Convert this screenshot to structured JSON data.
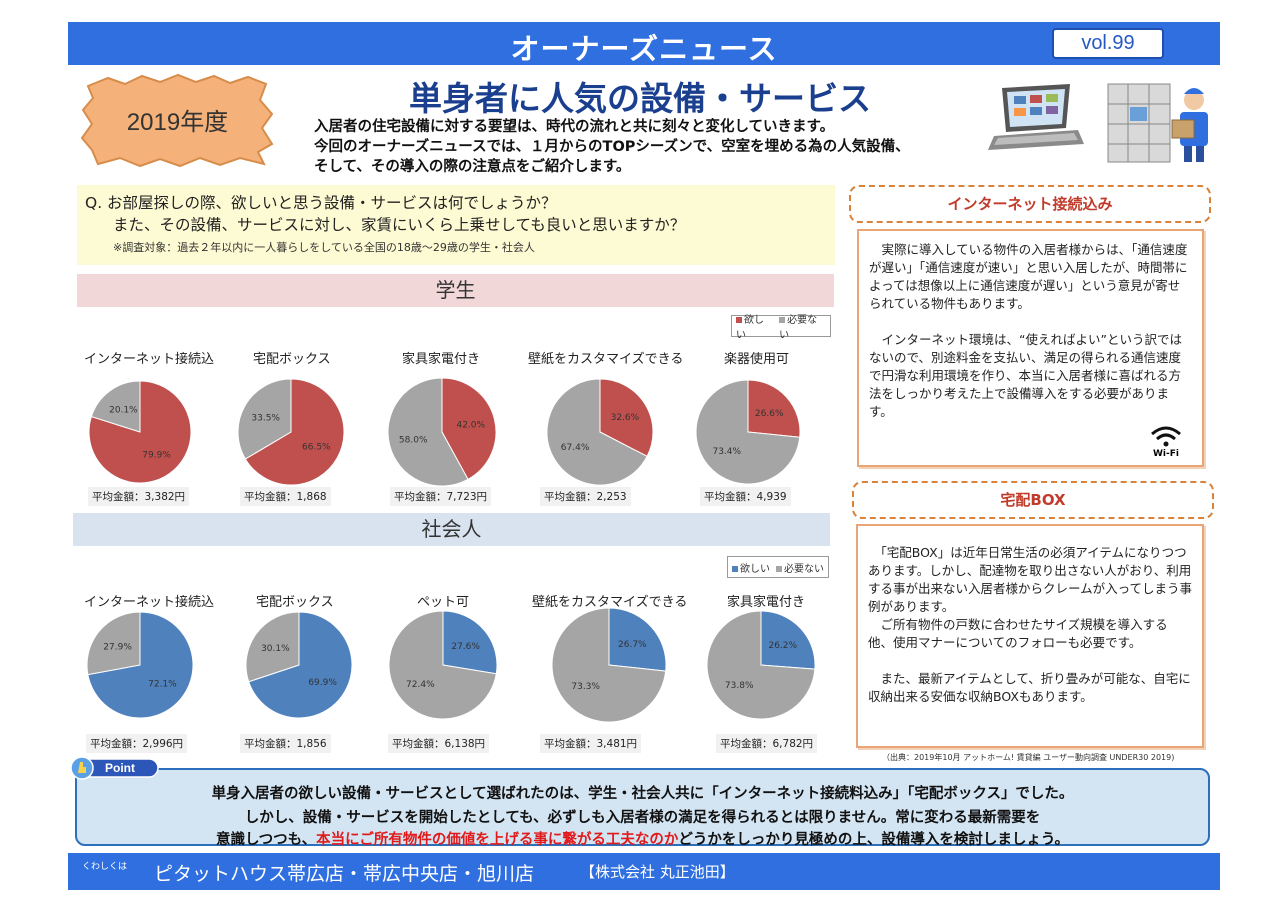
{
  "header": {
    "title": "オーナーズニュース",
    "vol": "vol.99"
  },
  "year_badge": "2019年度",
  "headline": "単身者に人気の設備・サービス",
  "lead": [
    "入居者の住宅設備に対する要望は、時代の流れと共に刻々と変化していきます。",
    "今回のオーナーズニュースでは、１月からのTOPシーズンで、空室を埋める為の人気設備、",
    "そして、その導入の際の注意点をご紹介します。"
  ],
  "question": {
    "line1": "Q.  お部屋探しの際、欲しいと思う設備・サービスは何でしょうか？",
    "line2": "また、その設備、サービスに対し、家賃にいくら上乗せしても良いと思いますか？",
    "note": "※調査対象：過去２年以内に一人暮らしをしている全国の18歳～29歳の学生・社会人"
  },
  "colors": {
    "student": "#c0504d",
    "worker": "#4f81bd",
    "other": "#a5a5a5"
  },
  "students": {
    "band": "学生",
    "legend": {
      "want": "欲しい",
      "no": "必要ない"
    },
    "charts": [
      {
        "title": "インターネット接続込",
        "want": 79.9,
        "no": 20.1,
        "want_label": "79.9%",
        "no_label": "20.1%",
        "avg": "平均金額：3,382円"
      },
      {
        "title": "宅配ボックス",
        "want": 66.5,
        "no": 33.5,
        "want_label": "66.5%",
        "no_label": "33.5%",
        "avg": "平均金額：1,868"
      },
      {
        "title": "家具家電付き",
        "want": 42.0,
        "no": 58.0,
        "want_label": "42.0%",
        "no_label": "58.0%",
        "avg": "平均金額：7,723円"
      },
      {
        "title": "壁紙をカスタマイズできる",
        "want": 32.6,
        "no": 67.4,
        "want_label": "32.6%",
        "no_label": "67.4%",
        "avg": "平均金額：2,253"
      },
      {
        "title": "楽器使用可",
        "want": 26.6,
        "no": 73.4,
        "want_label": "26.6%",
        "no_label": "73.4%",
        "avg": "平均金額：4,939"
      }
    ]
  },
  "workers": {
    "band": "社会人",
    "legend": {
      "want": "欲しい",
      "no": "必要ない"
    },
    "charts": [
      {
        "title": "インターネット接続込",
        "want": 72.1,
        "no": 27.9,
        "want_label": "72.1%",
        "no_label": "27.9%",
        "avg": "平均金額：2,996円"
      },
      {
        "title": "宅配ボックス",
        "want": 69.9,
        "no": 30.1,
        "want_label": "69.9%",
        "no_label": "30.1%",
        "avg": "平均金額：1,856"
      },
      {
        "title": "ペット可",
        "want": 27.6,
        "no": 72.4,
        "want_label": "27.6%",
        "no_label": "72.4%",
        "avg": "平均金額：6,138円"
      },
      {
        "title": "壁紙をカスタマイズできる",
        "want": 26.7,
        "no": 73.3,
        "want_label": "26.7%",
        "no_label": "73.3%",
        "avg": "平均金額：3,481円"
      },
      {
        "title": "家具家電付き",
        "want": 26.2,
        "no": 73.8,
        "want_label": "26.2%",
        "no_label": "73.8%",
        "avg": "平均金額：6,782円"
      }
    ]
  },
  "internet_section": {
    "heading": "インターネット接続込み",
    "p1": "　実際に導入している物件の入居者様からは、「通信速度が遅い」「通信速度が速い」と思い入居したが、時間帯によっては想像以上に通信速度が遅い」という意見が寄せられている物件もあります。",
    "p2": "　インターネット環境は、“使えればよい”という訳ではないので、別途料金を支払い、満足の得られる通信速度で円滑な利用環境を作り、本当に入居者様に喜ばれる方法をしっかり考えた上で設備導入をする必要があります。",
    "wifi_label": "Wi-Fi"
  },
  "delivery_section": {
    "heading": "宅配BOX",
    "p1": "　「宅配BOX」は近年日常生活の必須アイテムになりつつあります。しかし、配達物を取り出さない人がおり、利用する事が出来ない入居者様からクレームが入ってしまう事例があります。",
    "p2": "　ご所有物件の戸数に合わせたサイズ規模を導入する他、使用マナーについてのフォローも必要です。",
    "p3": "　また、最新アイテムとして、折り畳みが可能な、自宅に収納出来る安価な収納BOXもあります。"
  },
  "source": "（出典：2019年10月  アットホーム! 賃貸編  ユーザー動向調査  UNDER30 2019)",
  "point": {
    "tag": "Point",
    "line1": "単身入居者の欲しい設備・サービスとして選ばれたのは、学生・社会人共に「インターネット接続料込み」「宅配ボックス」でした。",
    "line2": "しかし、設備・サービスを開始したとしても、必ずしも入居者様の満足を得られるとは限りません。常に変わる最新需要を",
    "line3_pre": "意識しつつも、",
    "line3_red": "本当にご所有物件の価値を上げる事に繋がる工夫なのか",
    "line3_post": "どうかをしっかり見極めの上、設備導入を検討しましょう。"
  },
  "footer": {
    "small": "くわしくは",
    "stores": "ピタットハウス帯広店・帯広中央店・旭川店",
    "company": "【株式会社  丸正池田】"
  }
}
